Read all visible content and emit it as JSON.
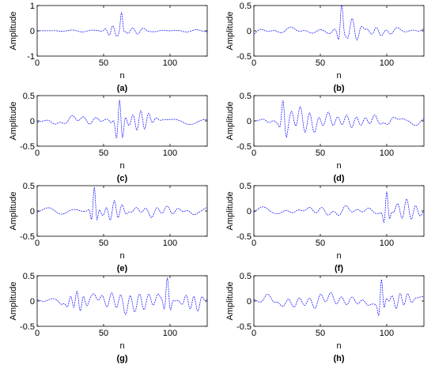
{
  "chart_data": [
    {
      "type": "line",
      "panel": "(a)",
      "xlabel": "n",
      "ylabel": "Amplitude",
      "xlim": [
        0,
        128
      ],
      "ylim": [
        -1,
        1
      ],
      "xticks": [
        0,
        50,
        100
      ],
      "yticks": [
        -1,
        0,
        1
      ],
      "series": [
        {
          "color": "#0000ff",
          "dash": "dashed",
          "baseline_noise": 0.02,
          "features": [
            {
              "center": 63.5,
              "amp": 0.62,
              "sigma": 1.2,
              "period": 6
            },
            {
              "center": 57,
              "amp": 0.22,
              "sigma": 4,
              "period": 6
            },
            {
              "center": 72,
              "amp": 0.15,
              "sigma": 6,
              "period": 8
            }
          ]
        }
      ]
    },
    {
      "type": "line",
      "panel": "(b)",
      "xlabel": "n",
      "ylabel": "Amplitude",
      "xlim": [
        0,
        128
      ],
      "ylim": [
        -0.5,
        0.5
      ],
      "xticks": [
        0,
        50,
        100
      ],
      "yticks": [
        -0.5,
        0,
        0.5
      ],
      "series": [
        {
          "color": "#0000ff",
          "dash": "dashed",
          "baseline_noise": 0.025,
          "features": [
            {
              "center": 66,
              "amp": 0.47,
              "sigma": 1.6,
              "period": 6
            },
            {
              "center": 74,
              "amp": 0.2,
              "sigma": 7,
              "period": 7
            },
            {
              "center": 92,
              "amp": 0.1,
              "sigma": 8,
              "period": 8
            }
          ]
        }
      ]
    },
    {
      "type": "line",
      "panel": "(c)",
      "xlabel": "n",
      "ylabel": "Amplitude",
      "xlim": [
        0,
        128
      ],
      "ylim": [
        -0.5,
        0.5
      ],
      "xticks": [
        0,
        50,
        100
      ],
      "yticks": [
        -0.5,
        0,
        0.5
      ],
      "series": [
        {
          "color": "#0000ff",
          "dash": "dashed",
          "baseline_noise": 0.03,
          "features": [
            {
              "center": 62,
              "amp": 0.46,
              "sigma": 2.5,
              "period": 5
            },
            {
              "center": 78,
              "amp": 0.2,
              "sigma": 6,
              "period": 6
            },
            {
              "center": 35,
              "amp": 0.06,
              "sigma": 15,
              "period": 9
            }
          ]
        }
      ]
    },
    {
      "type": "line",
      "panel": "(d)",
      "xlabel": "n",
      "ylabel": "Amplitude",
      "xlim": [
        0,
        128
      ],
      "ylim": [
        -0.5,
        0.5
      ],
      "xticks": [
        0,
        50,
        100
      ],
      "yticks": [
        -0.5,
        0,
        0.5
      ],
      "series": [
        {
          "color": "#0000ff",
          "dash": "dashed",
          "baseline_noise": 0.035,
          "features": [
            {
              "center": 22,
              "amp": 0.4,
              "sigma": 1.8,
              "period": 6
            },
            {
              "center": 35,
              "amp": 0.2,
              "sigma": 10,
              "period": 7
            },
            {
              "center": 70,
              "amp": 0.1,
              "sigma": 20,
              "period": 7
            }
          ]
        }
      ]
    },
    {
      "type": "line",
      "panel": "(e)",
      "xlabel": "n",
      "ylabel": "Amplitude",
      "xlim": [
        0,
        128
      ],
      "ylim": [
        -0.5,
        0.5
      ],
      "xticks": [
        0,
        50,
        100
      ],
      "yticks": [
        -0.5,
        0,
        0.5
      ],
      "series": [
        {
          "color": "#0000ff",
          "dash": "dashed",
          "baseline_noise": 0.03,
          "features": [
            {
              "center": 43,
              "amp": 0.45,
              "sigma": 1.8,
              "period": 5
            },
            {
              "center": 58,
              "amp": 0.18,
              "sigma": 6,
              "period": 6
            },
            {
              "center": 90,
              "amp": 0.08,
              "sigma": 14,
              "period": 8
            }
          ]
        }
      ]
    },
    {
      "type": "line",
      "panel": "(f)",
      "xlabel": "n",
      "ylabel": "Amplitude",
      "xlim": [
        0,
        128
      ],
      "ylim": [
        -0.5,
        0.5
      ],
      "xticks": [
        0,
        50,
        100
      ],
      "yticks": [
        -0.5,
        0,
        0.5
      ],
      "series": [
        {
          "color": "#0000ff",
          "dash": "dashed",
          "baseline_noise": 0.03,
          "features": [
            {
              "center": 100,
              "amp": 0.4,
              "sigma": 1.8,
              "period": 5
            },
            {
              "center": 115,
              "amp": 0.2,
              "sigma": 7,
              "period": 7
            },
            {
              "center": 60,
              "amp": 0.06,
              "sigma": 20,
              "period": 9
            }
          ]
        }
      ]
    },
    {
      "type": "line",
      "panel": "(g)",
      "xlabel": "n",
      "ylabel": "Amplitude",
      "xlim": [
        0,
        128
      ],
      "ylim": [
        -0.5,
        0.5
      ],
      "xticks": [
        0,
        50,
        100
      ],
      "yticks": [
        -0.5,
        0,
        0.5
      ],
      "series": [
        {
          "color": "#0000ff",
          "dash": "dashed",
          "baseline_noise": 0.04,
          "features": [
            {
              "center": 98,
              "amp": 0.35,
              "sigma": 2.2,
              "period": 5
            },
            {
              "center": 30,
              "amp": 0.18,
              "sigma": 5,
              "period": 5
            },
            {
              "center": 70,
              "amp": 0.18,
              "sigma": 18,
              "period": 7
            },
            {
              "center": 118,
              "amp": 0.15,
              "sigma": 6,
              "period": 6
            }
          ]
        }
      ]
    },
    {
      "type": "line",
      "panel": "(h)",
      "xlabel": "n",
      "ylabel": "Amplitude",
      "xlim": [
        0,
        128
      ],
      "ylim": [
        -0.5,
        0.5
      ],
      "xticks": [
        0,
        50,
        100
      ],
      "yticks": [
        -0.5,
        0,
        0.5
      ],
      "series": [
        {
          "color": "#0000ff",
          "dash": "dashed",
          "baseline_noise": 0.04,
          "features": [
            {
              "center": 96,
              "amp": 0.45,
              "sigma": 1.8,
              "period": 5
            },
            {
              "center": 110,
              "amp": 0.15,
              "sigma": 6,
              "period": 6
            },
            {
              "center": 50,
              "amp": 0.1,
              "sigma": 25,
              "period": 8
            }
          ]
        }
      ]
    }
  ]
}
